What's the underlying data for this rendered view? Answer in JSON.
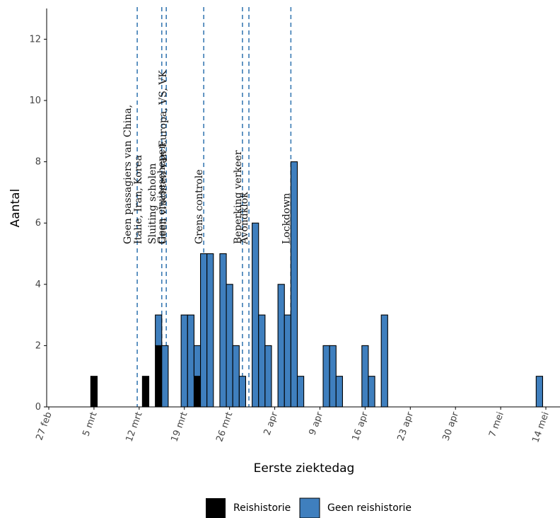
{
  "chart_data": {
    "type": "bar",
    "stacked": true,
    "xlabel": "Eerste ziektedag",
    "ylabel": "Aantal",
    "ylim": [
      0,
      13
    ],
    "yticks": [
      0,
      2,
      4,
      6,
      8,
      10,
      12
    ],
    "x_range_days_from_feb27": [
      0,
      76.5
    ],
    "xticks": [
      {
        "day": 0,
        "label": "27 feb"
      },
      {
        "day": 7,
        "label": "5 mrt"
      },
      {
        "day": 14,
        "label": "12 mrt"
      },
      {
        "day": 21,
        "label": "19 mrt"
      },
      {
        "day": 28,
        "label": "26 mrt"
      },
      {
        "day": 35,
        "label": "2 apr"
      },
      {
        "day": 42,
        "label": "9 apr"
      },
      {
        "day": 49,
        "label": "16 apr"
      },
      {
        "day": 56,
        "label": "23 apr"
      },
      {
        "day": 63,
        "label": "30 apr"
      },
      {
        "day": 70,
        "label": "7 mei"
      },
      {
        "day": 77,
        "label": "14 mei"
      }
    ],
    "series": [
      {
        "name": "Reishistorie",
        "color": "#000000",
        "points": [
          [
            7,
            1
          ],
          [
            15,
            1
          ],
          [
            17,
            2
          ],
          [
            23,
            1
          ]
        ]
      },
      {
        "name": "Geen reishistorie",
        "color": "#3f7fbe",
        "points": [
          [
            17,
            1
          ],
          [
            18,
            2
          ],
          [
            21,
            3
          ],
          [
            22,
            3
          ],
          [
            23,
            1
          ],
          [
            24,
            5
          ],
          [
            25,
            5
          ],
          [
            27,
            5
          ],
          [
            28,
            4
          ],
          [
            29,
            2
          ],
          [
            30,
            1
          ],
          [
            32,
            6
          ],
          [
            33,
            3
          ],
          [
            34,
            2
          ],
          [
            36,
            4
          ],
          [
            37,
            3
          ],
          [
            38,
            8
          ],
          [
            39,
            1
          ],
          [
            43,
            2
          ],
          [
            44,
            2
          ],
          [
            45,
            1
          ],
          [
            49,
            2
          ],
          [
            50,
            1
          ],
          [
            52,
            3
          ],
          [
            76,
            1
          ]
        ]
      }
    ],
    "events": [
      {
        "day": 13.7,
        "lines": [
          "Geen passagiers van China,",
          "Italie, Iran, Korea"
        ]
      },
      {
        "day": 17.5,
        "lines": [
          "Sluiting scholen",
          "Geen vluchten van Europa, VS, VK"
        ]
      },
      {
        "day": 18.2,
        "lines": [
          "Geen cruiseschepen"
        ]
      },
      {
        "day": 24.0,
        "lines": [
          "Grens controle"
        ]
      },
      {
        "day": 30.0,
        "lines": [
          "Beperking verkeer"
        ]
      },
      {
        "day": 31.0,
        "lines": [
          "Avondklok"
        ]
      },
      {
        "day": 37.5,
        "lines": [
          "Lockdown"
        ]
      }
    ],
    "legend": {
      "position": "bottom",
      "items": [
        "Reishistorie",
        "Geen reishistorie"
      ]
    },
    "grid": false
  }
}
